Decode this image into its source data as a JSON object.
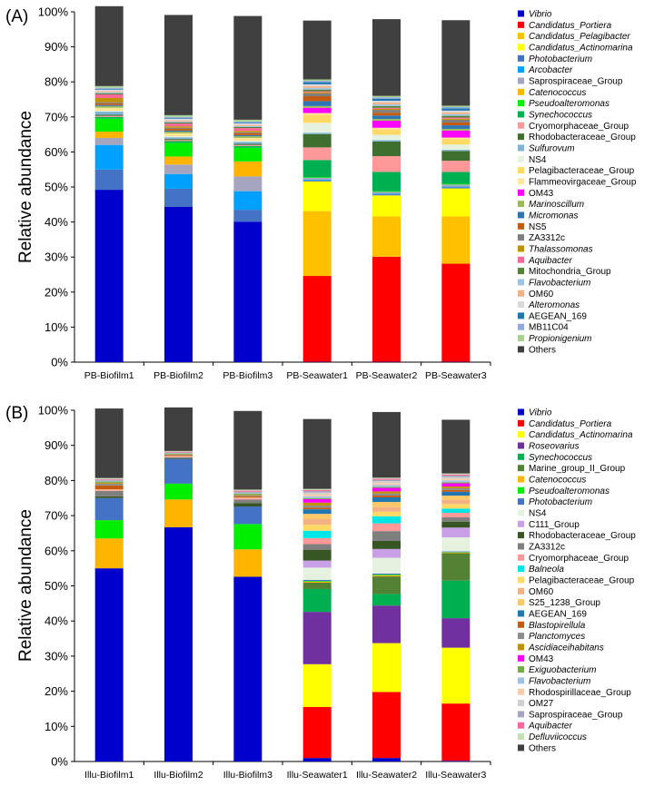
{
  "chart_data": [
    {
      "type": "bar",
      "stacked": true,
      "panel_label": "(A)",
      "ylabel": "Relative abundance",
      "ylim": [
        0,
        100
      ],
      "yticks": [
        "0%",
        "10%",
        "20%",
        "30%",
        "40%",
        "50%",
        "60%",
        "70%",
        "80%",
        "90%",
        "100%"
      ],
      "categories": [
        "PB-Biofilm1",
        "PB-Biofilm2",
        "PB-Biofilm3",
        "PB-Seawater1",
        "PB-Seawater2",
        "PB-Seawater3"
      ],
      "legend_position": "right",
      "series": [
        {
          "name": "Vibrio",
          "italic": true,
          "color": "#0000CC",
          "values": [
            49.2,
            44.3,
            40.1,
            0.1,
            0.1,
            0.1
          ]
        },
        {
          "name": "Candidatus_Portiera",
          "italic": true,
          "color": "#FF0000",
          "values": [
            0,
            0,
            0,
            24.5,
            30,
            28
          ]
        },
        {
          "name": "Candidatus_Pelagibacter",
          "italic": true,
          "color": "#FFC000",
          "values": [
            0,
            0,
            0,
            18.5,
            11.5,
            13.5
          ]
        },
        {
          "name": "Candidatus_Actinomarina",
          "italic": true,
          "color": "#FFFF00",
          "values": [
            0,
            0,
            0,
            8.5,
            6,
            8
          ]
        },
        {
          "name": "Photobacterium",
          "italic": true,
          "color": "#4472C4",
          "values": [
            5.8,
            5.2,
            3.4,
            0.3,
            0.3,
            0.3
          ]
        },
        {
          "name": "Arcobacter",
          "italic": true,
          "color": "#00A0FF",
          "values": [
            7,
            4.2,
            5.3,
            0.2,
            0.2,
            0.2
          ]
        },
        {
          "name": "Saprospiraceae_Group",
          "italic": false,
          "color": "#A5A5C0",
          "values": [
            2,
            2.7,
            4.2,
            0.5,
            0.5,
            0.6
          ]
        },
        {
          "name": "Catenococcus",
          "italic": true,
          "color": "#FFB400",
          "values": [
            1.8,
            2.3,
            4.3,
            0,
            0,
            0
          ]
        },
        {
          "name": "Pseudoalteromonas",
          "italic": true,
          "color": "#00EE00",
          "values": [
            3.7,
            3.9,
            3.9,
            0.2,
            0.2,
            0.2
          ]
        },
        {
          "name": "Synechococcus",
          "italic": true,
          "color": "#00B050",
          "values": [
            0.5,
            0.5,
            0.5,
            4.9,
            5.5,
            3.4
          ]
        },
        {
          "name": "Cryomorphaceae_Group",
          "italic": false,
          "color": "#FF9999",
          "values": [
            0.3,
            0.3,
            0.3,
            3.6,
            4.5,
            3.2
          ]
        },
        {
          "name": "Rhodobacteraceae_Group",
          "italic": false,
          "color": "#3F6F2F",
          "values": [
            0.3,
            0.3,
            0.3,
            3.8,
            4.2,
            2.8
          ]
        },
        {
          "name": "Sulfurovum",
          "italic": true,
          "color": "#7FB4D8",
          "values": [
            0.9,
            0.5,
            0.6,
            0.4,
            0.4,
            0.3
          ]
        },
        {
          "name": "NS4",
          "italic": false,
          "color": "#E6F2E0",
          "values": [
            0.3,
            0.3,
            0.3,
            2.8,
            1.5,
            1.5
          ]
        },
        {
          "name": "Pelagibacteraceae_Group",
          "italic": false,
          "color": "#FFD966",
          "values": [
            0.2,
            0.2,
            0.2,
            2.3,
            1.5,
            1.5
          ]
        },
        {
          "name": "Flammeovirgaceae_Group",
          "italic": false,
          "color": "#FFE699",
          "values": [
            0.6,
            0.6,
            0.6,
            0.5,
            0.5,
            0.5
          ]
        },
        {
          "name": "OM43",
          "italic": false,
          "color": "#FF00FF",
          "values": [
            0,
            0,
            0,
            1.5,
            2,
            2
          ]
        },
        {
          "name": "Marinoscillum",
          "italic": true,
          "color": "#9BBB59",
          "values": [
            0.5,
            0.5,
            0.5,
            0.5,
            0.5,
            0.5
          ]
        },
        {
          "name": "Micromonas",
          "italic": true,
          "color": "#2E75B6",
          "values": [
            0.3,
            0.3,
            0.3,
            1.4,
            1,
            1
          ]
        },
        {
          "name": "NS5",
          "italic": false,
          "color": "#C55A11",
          "values": [
            0.5,
            0.5,
            0.5,
            1.4,
            0.8,
            0.8
          ]
        },
        {
          "name": "ZA3312c",
          "italic": false,
          "color": "#7F7F7F",
          "values": [
            0.3,
            0.3,
            0.3,
            0.8,
            0.8,
            0.8
          ]
        },
        {
          "name": "Thalassomonas",
          "italic": true,
          "color": "#BF9000",
          "values": [
            1.2,
            0.4,
            0.4,
            0.3,
            0.3,
            0.3
          ]
        },
        {
          "name": "Aquibacter",
          "italic": true,
          "color": "#FF6699",
          "values": [
            1,
            0.8,
            0.8,
            0.3,
            0.3,
            0.3
          ]
        },
        {
          "name": "Mitochondria_Group",
          "italic": false,
          "color": "#548235",
          "values": [
            0.3,
            0.3,
            0.3,
            0.5,
            0.5,
            0.5
          ]
        },
        {
          "name": "Flavobacterium",
          "italic": true,
          "color": "#9DC3E6",
          "values": [
            0.3,
            0.3,
            0.3,
            0.5,
            0.5,
            0.5
          ]
        },
        {
          "name": "OM60",
          "italic": false,
          "color": "#F4B183",
          "values": [
            0.3,
            0.3,
            0.3,
            0.5,
            0.5,
            0.5
          ]
        },
        {
          "name": "Alteromonas",
          "italic": true,
          "color": "#D9D9D9",
          "values": [
            0.5,
            0.5,
            0.5,
            0.5,
            0.5,
            0.5
          ]
        },
        {
          "name": "AEGEAN_169",
          "italic": false,
          "color": "#1F77B4",
          "values": [
            0.2,
            0.2,
            0.2,
            0.6,
            0.6,
            0.6
          ]
        },
        {
          "name": "MB11C04",
          "italic": false,
          "color": "#8FAADC",
          "values": [
            0.3,
            0.3,
            0.3,
            0.4,
            0.4,
            0.4
          ]
        },
        {
          "name": "Propionigenium",
          "italic": true,
          "color": "#A9D18E",
          "values": [
            0.5,
            0.5,
            0.5,
            0.4,
            0.4,
            0.4
          ]
        },
        {
          "name": "Others",
          "italic": false,
          "color": "#404040",
          "values": [
            22.8,
            28.6,
            29.6,
            16.8,
            21.9,
            24.4
          ]
        }
      ]
    },
    {
      "type": "bar",
      "stacked": true,
      "panel_label": "(B)",
      "ylabel": "Relative abundance",
      "ylim": [
        0,
        100
      ],
      "yticks": [
        "0%",
        "10%",
        "20%",
        "30%",
        "40%",
        "50%",
        "60%",
        "70%",
        "80%",
        "90%",
        "100%"
      ],
      "categories": [
        "Illu-Biofilm1",
        "Illu-Biofilm2",
        "Illu-Biofilm3",
        "Illu-Seawater1",
        "Illu-Seawater2",
        "Illu-Seawater3"
      ],
      "legend_position": "right",
      "series": [
        {
          "name": "Vibrio",
          "italic": true,
          "color": "#0000CC",
          "values": [
            55,
            66.7,
            52.6,
            1,
            1,
            0.2
          ]
        },
        {
          "name": "Candidatus_Portiera",
          "italic": true,
          "color": "#FF0000",
          "values": [
            0,
            0,
            0,
            14.5,
            18.8,
            16.3
          ]
        },
        {
          "name": "Candidatus_Actinomarina",
          "italic": true,
          "color": "#FFFF00",
          "values": [
            0,
            0,
            0,
            12.2,
            13.9,
            15.9
          ]
        },
        {
          "name": "Roseovarius",
          "italic": true,
          "color": "#7030A0",
          "values": [
            0,
            0,
            0,
            14.9,
            10.7,
            8.4
          ]
        },
        {
          "name": "Synechococcus",
          "italic": true,
          "color": "#00B050",
          "values": [
            0,
            0,
            0,
            6.5,
            3.3,
            10.7
          ]
        },
        {
          "name": "Marine_group_II_Group",
          "italic": false,
          "color": "#548235",
          "values": [
            0,
            0,
            0,
            1.8,
            5,
            7.8
          ]
        },
        {
          "name": "Catenococcus",
          "italic": true,
          "color": "#FFB400",
          "values": [
            8.5,
            7.9,
            7.8,
            0.3,
            0.3,
            0.2
          ]
        },
        {
          "name": "Pseudoalteromonas",
          "italic": true,
          "color": "#00EE00",
          "values": [
            5.2,
            4.5,
            7.2,
            0.2,
            0.2,
            0.1
          ]
        },
        {
          "name": "Photobacterium",
          "italic": true,
          "color": "#4472C4",
          "values": [
            6.3,
            7.1,
            5,
            0.3,
            0.3,
            0.2
          ]
        },
        {
          "name": "NS4",
          "italic": false,
          "color": "#E6F2E0",
          "values": [
            0,
            0,
            0,
            3.5,
            4.5,
            4
          ]
        },
        {
          "name": "C111_Group",
          "italic": false,
          "color": "#C9A0E8",
          "values": [
            0,
            0,
            0,
            2,
            2.5,
            2.8
          ]
        },
        {
          "name": "Rhodobacteraceae_Group",
          "italic": false,
          "color": "#375623",
          "values": [
            0.5,
            0.2,
            1,
            3.1,
            2.3,
            1.7
          ]
        },
        {
          "name": "ZA3312c",
          "italic": false,
          "color": "#7F7F7F",
          "values": [
            1.5,
            0.2,
            1,
            1.6,
            2.8,
            1.2
          ]
        },
        {
          "name": "Cryomorphaceae_Group",
          "italic": false,
          "color": "#FF9999",
          "values": [
            0.2,
            0.2,
            0.3,
            1.7,
            2.2,
            1.3
          ]
        },
        {
          "name": "Balneola",
          "italic": true,
          "color": "#00E5E5",
          "values": [
            0,
            0,
            0,
            2.1,
            2,
            1.2
          ]
        },
        {
          "name": "Pelagibacteraceae_Group",
          "italic": false,
          "color": "#FFD966",
          "values": [
            0,
            0,
            0,
            1.7,
            1.3,
            1.3
          ]
        },
        {
          "name": "OM60",
          "italic": false,
          "color": "#F4B183",
          "values": [
            0.3,
            0.2,
            0.3,
            1.6,
            1.3,
            1.2
          ]
        },
        {
          "name": "S25_1238_Group",
          "italic": false,
          "color": "#FFC866",
          "values": [
            0,
            0,
            0,
            1.5,
            1.5,
            1.2
          ]
        },
        {
          "name": "AEGEAN_169",
          "italic": false,
          "color": "#1F77B4",
          "values": [
            0,
            0,
            0,
            1.3,
            1.3,
            1.1
          ]
        },
        {
          "name": "Blastopirellula",
          "italic": true,
          "color": "#C55A11",
          "values": [
            1.1,
            0.2,
            0.3,
            0.5,
            0.5,
            0.5
          ]
        },
        {
          "name": "Planctomyces",
          "italic": true,
          "color": "#8C8C8C",
          "values": [
            0.5,
            0.2,
            0.3,
            0.6,
            0.6,
            0.5
          ]
        },
        {
          "name": "Ascidiaceihabitans",
          "italic": true,
          "color": "#BF9000",
          "values": [
            0.3,
            0.1,
            0.2,
            0.8,
            0.6,
            0.5
          ]
        },
        {
          "name": "OM43",
          "italic": false,
          "color": "#FF00FF",
          "values": [
            0,
            0,
            0,
            1,
            1,
            0.9
          ]
        },
        {
          "name": "Exiguobacterium",
          "italic": true,
          "color": "#70AD47",
          "values": [
            0.3,
            0.2,
            0.3,
            0.3,
            0.3,
            0.3
          ]
        },
        {
          "name": "Flavobacterium",
          "italic": true,
          "color": "#9DC3E6",
          "values": [
            0.2,
            0.1,
            0.2,
            0.5,
            0.5,
            0.5
          ]
        },
        {
          "name": "Rhodospirillaceae_Group",
          "italic": false,
          "color": "#F8CBAD",
          "values": [
            0,
            0,
            0,
            0.6,
            0.6,
            0.5
          ]
        },
        {
          "name": "OM27",
          "italic": false,
          "color": "#D0D0D0",
          "values": [
            0,
            0,
            0,
            0.5,
            0.5,
            0.5
          ]
        },
        {
          "name": "Saprospiraceae_Group",
          "italic": false,
          "color": "#A5A5C0",
          "values": [
            0.3,
            0.2,
            0.3,
            0.4,
            0.4,
            0.4
          ]
        },
        {
          "name": "Aquibacter",
          "italic": true,
          "color": "#FF6699",
          "values": [
            0.2,
            0.2,
            0.3,
            0.3,
            0.3,
            0.3
          ]
        },
        {
          "name": "Defluviicoccus",
          "italic": true,
          "color": "#C5E0B4",
          "values": [
            0.3,
            0.2,
            0.3,
            0.3,
            0.3,
            0.3
          ]
        },
        {
          "name": "Others",
          "italic": false,
          "color": "#404040",
          "values": [
            19.8,
            12.4,
            22.4,
            19.9,
            18.7,
            15.3
          ]
        }
      ]
    }
  ]
}
